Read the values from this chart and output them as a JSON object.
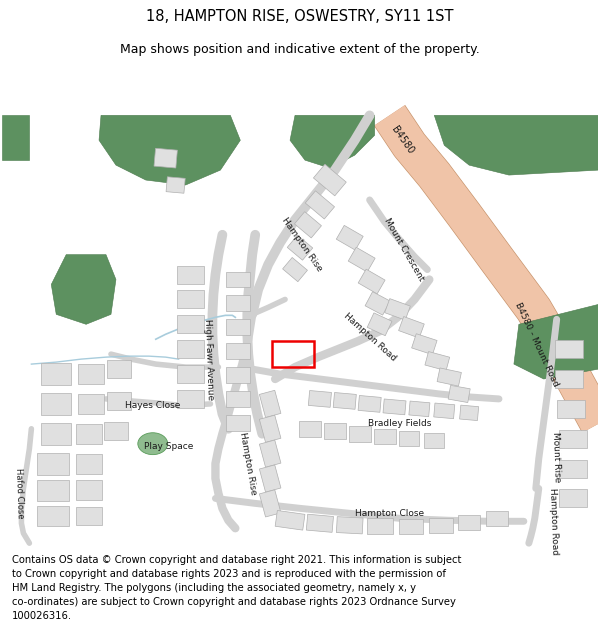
{
  "title_line1": "18, HAMPTON RISE, OSWESTRY, SY11 1ST",
  "title_line2": "Map shows position and indicative extent of the property.",
  "title_fontsize": 10.5,
  "subtitle_fontsize": 9.0,
  "footer_text": "Contains OS data © Crown copyright and database right 2021. This information is subject to Crown copyright and database rights 2023 and is reproduced with the permission of HM Land Registry. The polygons (including the associated geometry, namely x, y co-ordinates) are subject to Crown copyright and database rights 2023 Ordnance Survey 100026316.",
  "footer_fontsize": 7.2,
  "bg_color": "#ffffff",
  "fig_width": 6.0,
  "fig_height": 6.25
}
